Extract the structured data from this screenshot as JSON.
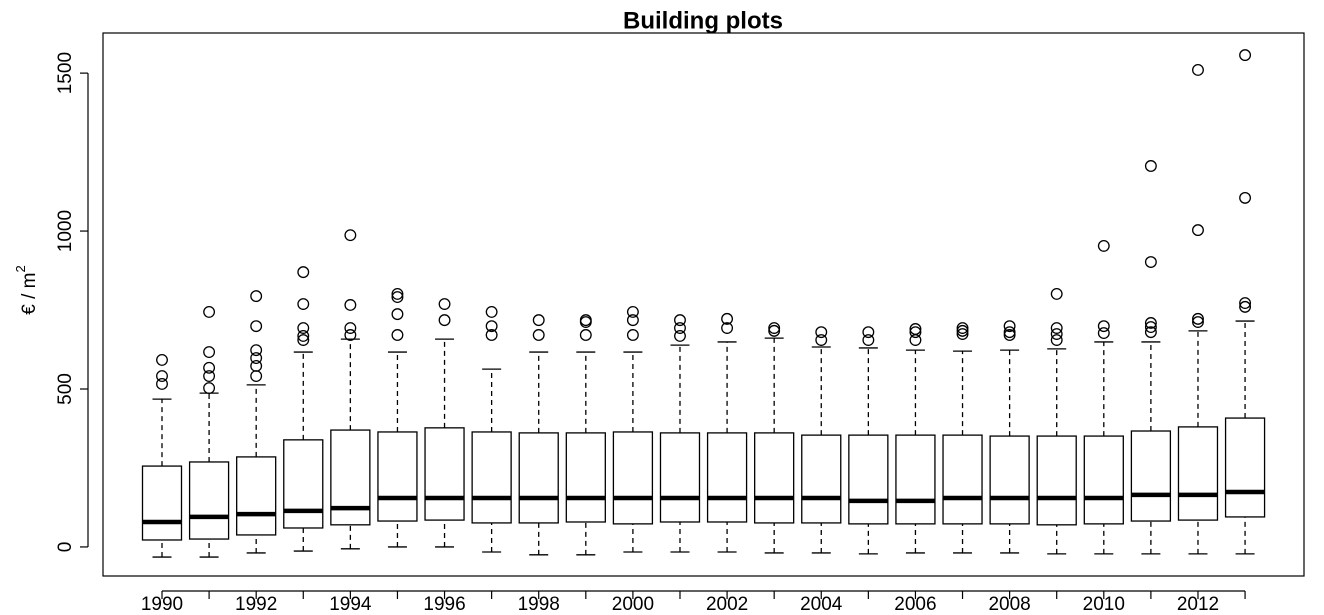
{
  "chart_data": {
    "type": "boxplot",
    "title": "Building plots",
    "y_label": "€ / m",
    "y_label_sup": "2",
    "categories": [
      "1990",
      null,
      "1992",
      null,
      "1994",
      null,
      "1996",
      null,
      "1998",
      null,
      "2000",
      null,
      "2002",
      null,
      "2004",
      null,
      "2006",
      null,
      "2008",
      null,
      "2010",
      null,
      "2012",
      null
    ],
    "whisker_low": [
      -32,
      -32,
      -19,
      -13,
      -6,
      0,
      0,
      -16,
      -25,
      -25,
      -16,
      -16,
      -16,
      -19,
      -19,
      -22,
      -19,
      -19,
      -19,
      -22,
      -22,
      -22,
      -22,
      -22
    ],
    "q1": [
      22,
      25,
      38,
      60,
      70,
      82,
      85,
      76,
      76,
      79,
      73,
      79,
      79,
      76,
      76,
      73,
      73,
      73,
      73,
      70,
      73,
      82,
      85,
      95
    ],
    "median": [
      79,
      95,
      104,
      114,
      123,
      155,
      155,
      155,
      155,
      155,
      155,
      155,
      155,
      155,
      155,
      146,
      146,
      155,
      155,
      155,
      155,
      165,
      165,
      174
    ],
    "q3": [
      256,
      269,
      285,
      339,
      370,
      364,
      377,
      364,
      361,
      361,
      364,
      361,
      361,
      361,
      354,
      354,
      354,
      354,
      351,
      351,
      351,
      367,
      380,
      408
    ],
    "whisker_high": [
      468,
      487,
      513,
      617,
      658,
      617,
      658,
      563,
      617,
      617,
      617,
      639,
      649,
      661,
      633,
      630,
      623,
      620,
      623,
      627,
      649,
      649,
      684,
      715
    ],
    "outliers": [
      [
        592,
        541,
        516
      ],
      [
        744,
        617,
        567,
        541,
        503
      ],
      [
        794,
        699,
        623,
        598,
        573,
        541
      ],
      [
        870,
        769,
        693,
        668,
        655
      ],
      [
        987,
        766,
        693,
        671
      ],
      [
        801,
        791,
        737,
        671
      ],
      [
        769,
        718
      ],
      [
        744,
        699,
        671
      ],
      [
        718,
        671
      ],
      [
        718,
        712,
        671
      ],
      [
        744,
        718,
        671
      ],
      [
        718,
        693,
        668
      ],
      [
        722,
        693
      ],
      [
        693,
        684
      ],
      [
        680,
        655
      ],
      [
        680,
        655
      ],
      [
        690,
        680,
        655
      ],
      [
        693,
        684,
        674
      ],
      [
        699,
        680,
        671
      ],
      [
        801,
        693,
        674,
        655
      ],
      [
        953,
        699,
        677
      ],
      [
        1206,
        902,
        709,
        696,
        680
      ],
      [
        1510,
        1003,
        722,
        712
      ],
      [
        1557,
        1105,
        772,
        760
      ]
    ],
    "ylim": [
      -92,
      1627
    ],
    "yticks": [
      0,
      500,
      1000,
      1500
    ],
    "color": "#000000"
  }
}
